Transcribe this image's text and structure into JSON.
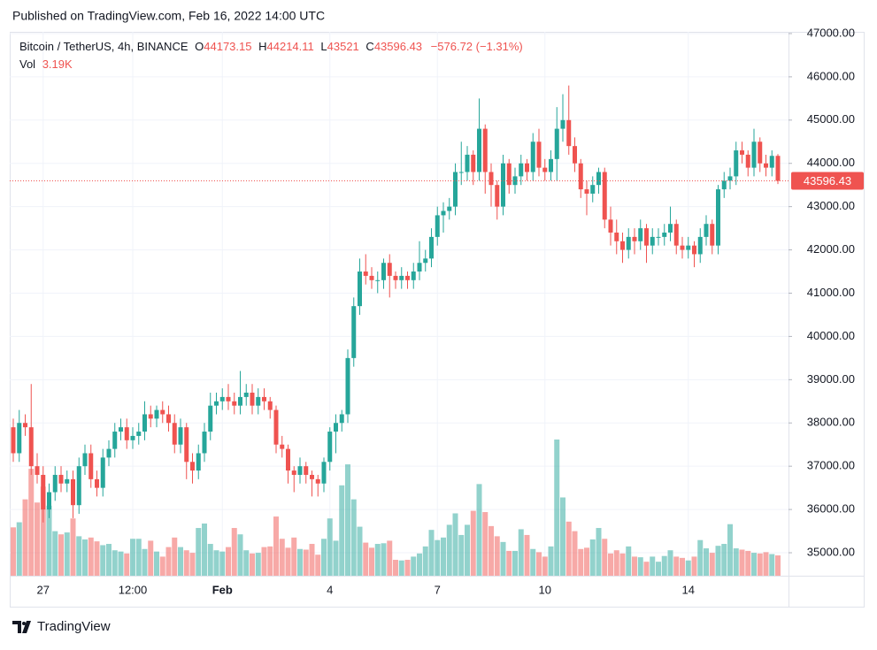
{
  "header": {
    "published": "Published on TradingView.com, Feb 16, 2022 14:00 UTC"
  },
  "footer": {
    "brand": "TradingView"
  },
  "chart_data": {
    "type": "candlestick",
    "legend": {
      "symbol": "Bitcoin / TetherUS, 4h, BINANCE",
      "open_label": "O",
      "high_label": "H",
      "low_label": "L",
      "close_label": "C",
      "change": "−576.72 (−1.31%)",
      "vol_label": "Vol",
      "vol_value": "3.19K"
    },
    "up_color": "#26a69a",
    "down_color": "#ef5350",
    "grid": true,
    "categories": [
      null,
      null,
      null,
      null,
      null,
      "27",
      null,
      null,
      null,
      null,
      null,
      null,
      null,
      null,
      null,
      null,
      null,
      null,
      null,
      null,
      "12:00",
      null,
      null,
      null,
      null,
      null,
      null,
      null,
      null,
      null,
      null,
      null,
      null,
      null,
      null,
      "Feb",
      null,
      null,
      null,
      null,
      null,
      null,
      null,
      null,
      null,
      null,
      null,
      null,
      null,
      null,
      null,
      null,
      null,
      "4",
      null,
      null,
      null,
      null,
      null,
      null,
      null,
      null,
      null,
      null,
      null,
      null,
      null,
      null,
      null,
      null,
      null,
      "7",
      null,
      null,
      null,
      null,
      null,
      null,
      null,
      null,
      null,
      null,
      null,
      null,
      null,
      null,
      null,
      null,
      null,
      "10",
      null,
      null,
      null,
      null,
      null,
      null,
      null,
      null,
      null,
      null,
      null,
      null,
      null,
      null,
      null,
      null,
      null,
      null,
      null,
      null,
      null,
      null,
      null,
      "14",
      null,
      null,
      null,
      null,
      null,
      null,
      null,
      null,
      null,
      null,
      null,
      null,
      null,
      null,
      null
    ],
    "open": [
      37900,
      37300,
      38000,
      37900,
      37000,
      36800,
      36000,
      36400,
      36800,
      36600,
      36700,
      36100,
      37000,
      37300,
      36700,
      36500,
      37200,
      37400,
      37800,
      37900,
      37600,
      37700,
      37800,
      38200,
      38100,
      38300,
      38200,
      38000,
      37500,
      37900,
      37100,
      36900,
      37300,
      37800,
      38400,
      38500,
      38600,
      38500,
      38400,
      38600,
      38700,
      38400,
      38600,
      38500,
      38300,
      37500,
      37400,
      36900,
      36800,
      37000,
      36800,
      36700,
      36600,
      37100,
      37800,
      38000,
      38200,
      39500,
      40700,
      41500,
      41400,
      41300,
      41300,
      41700,
      41400,
      41300,
      41400,
      41300,
      41500,
      41700,
      41800,
      42300,
      42800,
      42900,
      43000,
      43800,
      43800,
      44200,
      43800,
      44800,
      43800,
      43500,
      43000,
      44000,
      43500,
      43700,
      44000,
      43800,
      44500,
      43900,
      43800,
      44100,
      44800,
      45000,
      44400,
      44000,
      43400,
      43300,
      43500,
      43800,
      42700,
      42400,
      42200,
      42000,
      42300,
      42200,
      42500,
      42100,
      42300,
      42300,
      42400,
      42600,
      42100,
      42000,
      42100,
      41900,
      42300,
      42600,
      42100,
      43400,
      43600,
      43700,
      44300,
      44200,
      43900,
      44500,
      44000,
      43900,
      44173.15
    ],
    "high": [
      38100,
      38300,
      38200,
      38900,
      37300,
      37000,
      36600,
      37000,
      37000,
      36900,
      36900,
      37200,
      37500,
      37500,
      36900,
      37400,
      37600,
      38000,
      38100,
      38100,
      37900,
      38000,
      38500,
      38400,
      38400,
      38500,
      38400,
      38200,
      38100,
      38000,
      37300,
      37500,
      38000,
      38700,
      38700,
      38800,
      38900,
      38700,
      39200,
      38900,
      38900,
      38800,
      38800,
      38600,
      38400,
      37700,
      37500,
      37000,
      37200,
      37100,
      36900,
      36800,
      37200,
      37900,
      38200,
      38300,
      39700,
      40900,
      41800,
      41900,
      41600,
      41500,
      41800,
      41900,
      41500,
      41600,
      41500,
      41700,
      42200,
      42000,
      42500,
      43000,
      43100,
      43200,
      44000,
      44500,
      44400,
      44300,
      45500,
      44900,
      44000,
      43600,
      44200,
      44100,
      43900,
      44200,
      44100,
      44700,
      44800,
      44100,
      44300,
      45300,
      45600,
      45800,
      44600,
      44100,
      43600,
      43700,
      43900,
      43900,
      43000,
      42700,
      42400,
      42500,
      42500,
      42700,
      42600,
      42500,
      42500,
      42600,
      43000,
      42700,
      42300,
      42300,
      42200,
      42500,
      42800,
      42700,
      43500,
      43800,
      43900,
      44500,
      44500,
      44300,
      44800,
      44600,
      44200,
      44300,
      44214.11
    ],
    "low": [
      37100,
      37100,
      37700,
      36800,
      36600,
      35700,
      35800,
      36200,
      36400,
      36400,
      35800,
      35900,
      36800,
      36500,
      36300,
      36300,
      37000,
      37200,
      37600,
      37400,
      37400,
      37500,
      37600,
      37900,
      37900,
      38000,
      37800,
      37300,
      37300,
      36700,
      36600,
      36700,
      37100,
      37600,
      38200,
      38300,
      38300,
      38200,
      38200,
      38400,
      38200,
      38200,
      38300,
      38100,
      37300,
      37200,
      36600,
      36400,
      36600,
      36600,
      36300,
      36300,
      36400,
      36900,
      37300,
      37800,
      38000,
      39300,
      40500,
      41200,
      41100,
      41000,
      41100,
      40900,
      41100,
      41100,
      41100,
      41100,
      41300,
      41500,
      41600,
      42100,
      42400,
      42700,
      42800,
      43500,
      43600,
      43500,
      43600,
      43300,
      43000,
      42700,
      42800,
      43300,
      43300,
      43500,
      43600,
      43600,
      43700,
      43600,
      43600,
      43600,
      44500,
      44200,
      43800,
      43200,
      42800,
      43100,
      43300,
      42500,
      42100,
      41900,
      41700,
      41800,
      41900,
      42000,
      41700,
      41900,
      42100,
      42100,
      42200,
      41900,
      41800,
      41800,
      41600,
      41700,
      42100,
      41900,
      41900,
      43200,
      43400,
      43500,
      44000,
      43700,
      43700,
      43800,
      43700,
      43700,
      43521
    ],
    "close": [
      37300,
      38000,
      37900,
      37000,
      36800,
      36000,
      36400,
      36800,
      36600,
      36700,
      36100,
      37000,
      37300,
      36700,
      36500,
      37200,
      37400,
      37800,
      37900,
      37600,
      37700,
      37800,
      38200,
      38100,
      38300,
      38200,
      38000,
      37500,
      37900,
      37100,
      36900,
      37300,
      37800,
      38400,
      38500,
      38600,
      38500,
      38400,
      38600,
      38700,
      38400,
      38600,
      38500,
      38300,
      37500,
      37400,
      36900,
      36800,
      37000,
      36800,
      36700,
      36600,
      37100,
      37800,
      38000,
      38200,
      39500,
      40700,
      41500,
      41400,
      41300,
      41300,
      41700,
      41400,
      41300,
      41400,
      41300,
      41500,
      41700,
      41800,
      42300,
      42800,
      42900,
      43000,
      43800,
      43800,
      44200,
      43800,
      44800,
      43800,
      43500,
      43000,
      44000,
      43500,
      43700,
      44000,
      43800,
      44500,
      43900,
      43800,
      44100,
      44800,
      45000,
      44400,
      44000,
      43400,
      43300,
      43500,
      43800,
      42700,
      42400,
      42200,
      42000,
      42300,
      42200,
      42500,
      42100,
      42300,
      42300,
      42400,
      42600,
      42100,
      42000,
      42100,
      41900,
      42300,
      42600,
      42100,
      43400,
      43600,
      43700,
      44300,
      44200,
      43900,
      44500,
      44000,
      43900,
      44173.15,
      43596.43
    ],
    "volume": [
      7600,
      8400,
      12000,
      16800,
      11500,
      14000,
      11000,
      7000,
      6500,
      6800,
      9000,
      6200,
      5700,
      6000,
      5400,
      4800,
      5000,
      4000,
      3800,
      3500,
      5800,
      5800,
      4200,
      5500,
      3800,
      3000,
      4500,
      6000,
      4500,
      4000,
      3600,
      7500,
      8200,
      5000,
      4000,
      3800,
      4500,
      7500,
      6500,
      4000,
      3500,
      3600,
      4500,
      4600,
      9300,
      5800,
      4400,
      6000,
      4200,
      4100,
      5000,
      3300,
      5800,
      9000,
      5500,
      14200,
      17500,
      12000,
      7700,
      5200,
      4400,
      5000,
      5100,
      5500,
      2500,
      2400,
      2500,
      3000,
      3500,
      4600,
      7200,
      5600,
      6000,
      8000,
      9800,
      6400,
      8000,
      10200,
      14400,
      10000,
      7800,
      6200,
      5300,
      3900,
      3900,
      7300,
      6400,
      4200,
      3700,
      3000,
      4600,
      21400,
      12300,
      8500,
      7000,
      4200,
      4400,
      5700,
      7500,
      5800,
      3500,
      4000,
      3500,
      4600,
      3000,
      2900,
      2200,
      3000,
      2200,
      3100,
      4000,
      3000,
      2800,
      2400,
      3000,
      5600,
      4300,
      3600,
      4700,
      5000,
      8100,
      4300,
      4100,
      3900,
      3600,
      3500,
      3700,
      3400,
      3190
    ],
    "ylim": [
      34469,
      47040
    ],
    "yticks": [
      {
        "value": 35000,
        "label": "35000.00"
      },
      {
        "value": 36000,
        "label": "36000.00"
      },
      {
        "value": 37000,
        "label": "37000.00"
      },
      {
        "value": 38000,
        "label": "38000.00"
      },
      {
        "value": 39000,
        "label": "39000.00"
      },
      {
        "value": 40000,
        "label": "40000.00"
      },
      {
        "value": 41000,
        "label": "41000.00"
      },
      {
        "value": 42000,
        "label": "42000.00"
      },
      {
        "value": 43000,
        "label": "43000.00"
      },
      {
        "value": 44000,
        "label": "44000.00"
      },
      {
        "value": 45000,
        "label": "45000.00"
      },
      {
        "value": 46000,
        "label": "46000.00"
      },
      {
        "value": 47000,
        "label": "47000.00"
      }
    ]
  }
}
